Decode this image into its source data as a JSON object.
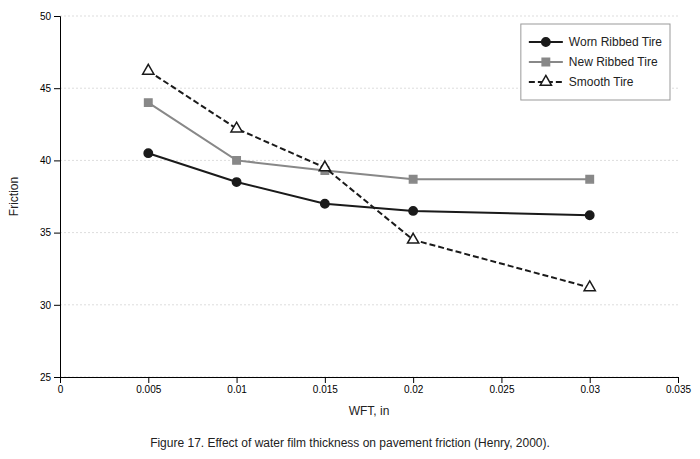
{
  "chart_data": {
    "type": "line",
    "caption": "Figure 17.  Effect of water film thickness on pavement friction (Henry, 2000).",
    "x_label": "WFT, in",
    "y_label": "Friction",
    "x": [
      0.005,
      0.01,
      0.015,
      0.02,
      0.03
    ],
    "series": [
      {
        "name": "Worn Ribbed Tire",
        "color": "#1a1a1a",
        "marker": "circle",
        "line_style": "solid",
        "values": [
          40.5,
          38.5,
          37.0,
          36.5,
          36.2
        ]
      },
      {
        "name": "New Ribbed Tire",
        "color": "#888888",
        "marker": "square",
        "line_style": "solid",
        "values": [
          44.0,
          40.0,
          39.3,
          38.7,
          38.7
        ]
      },
      {
        "name": "Smooth Tire",
        "color": "#1a1a1a",
        "marker": "triangle-open",
        "line_style": "dashed",
        "values": [
          46.2,
          42.2,
          39.5,
          34.5,
          31.2
        ]
      }
    ],
    "xlim": [
      0,
      0.035
    ],
    "ylim": [
      25,
      50
    ],
    "xticks": [
      0,
      0.005,
      0.01,
      0.015,
      0.02,
      0.025,
      0.03,
      0.035
    ],
    "yticks": [
      25,
      30,
      35,
      40,
      45,
      50
    ],
    "grid": true,
    "legend": "upper-right"
  }
}
